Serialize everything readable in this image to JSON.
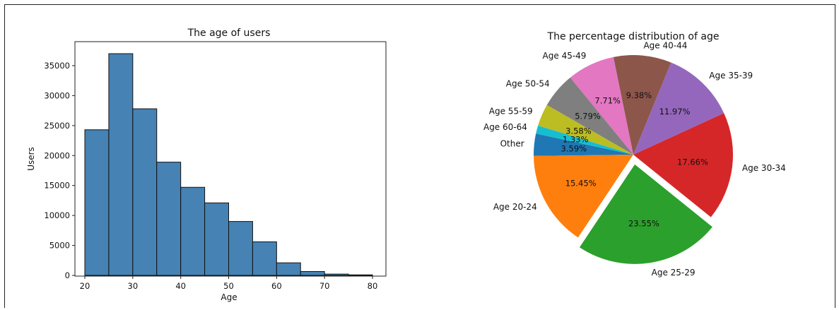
{
  "chart_data": [
    {
      "type": "bar",
      "title": "The age of users",
      "xlabel": "Age",
      "ylabel": "Users",
      "bin_edges": [
        20,
        25,
        30,
        35,
        40,
        45,
        50,
        55,
        60,
        65,
        70,
        75,
        80
      ],
      "values": [
        24300,
        37000,
        27800,
        18900,
        14700,
        12100,
        9000,
        5600,
        2100,
        650,
        220,
        90
      ],
      "xlim": [
        20,
        80
      ],
      "ylim": [
        0,
        37000
      ],
      "x_ticks": [
        "20",
        "30",
        "40",
        "50",
        "60",
        "70",
        "80"
      ],
      "y_ticks": [
        "0",
        "5000",
        "10000",
        "15000",
        "20000",
        "25000",
        "30000",
        "35000"
      ],
      "color": "#4682b4",
      "grid": false
    },
    {
      "type": "pie",
      "title": "The percentage distribution of age",
      "slices": [
        {
          "label": "Other",
          "value": 3.59,
          "pct_label": "3.59%",
          "color": "#1f77b4"
        },
        {
          "label": "Age 20-24",
          "value": 15.45,
          "pct_label": "15.45%",
          "color": "#ff7f0e"
        },
        {
          "label": "Age 25-29",
          "value": 23.55,
          "pct_label": "23.55%",
          "color": "#2ca02c",
          "exploded": true
        },
        {
          "label": "Age 30-34",
          "value": 17.66,
          "pct_label": "17.66%",
          "color": "#d62728"
        },
        {
          "label": "Age 35-39",
          "value": 11.97,
          "pct_label": "11.97%",
          "color": "#9467bd"
        },
        {
          "label": "Age 40-44",
          "value": 9.38,
          "pct_label": "9.38%",
          "color": "#8c564b"
        },
        {
          "label": "Age 45-49",
          "value": 7.71,
          "pct_label": "7.71%",
          "color": "#e377c2"
        },
        {
          "label": "Age 50-54",
          "value": 5.79,
          "pct_label": "5.79%",
          "color": "#7f7f7f"
        },
        {
          "label": "Age 55-59",
          "value": 3.58,
          "pct_label": "3.58%",
          "color": "#bcbd22"
        },
        {
          "label": "Age 60-64",
          "value": 1.33,
          "pct_label": "1.33%",
          "color": "#17becf"
        }
      ]
    }
  ]
}
